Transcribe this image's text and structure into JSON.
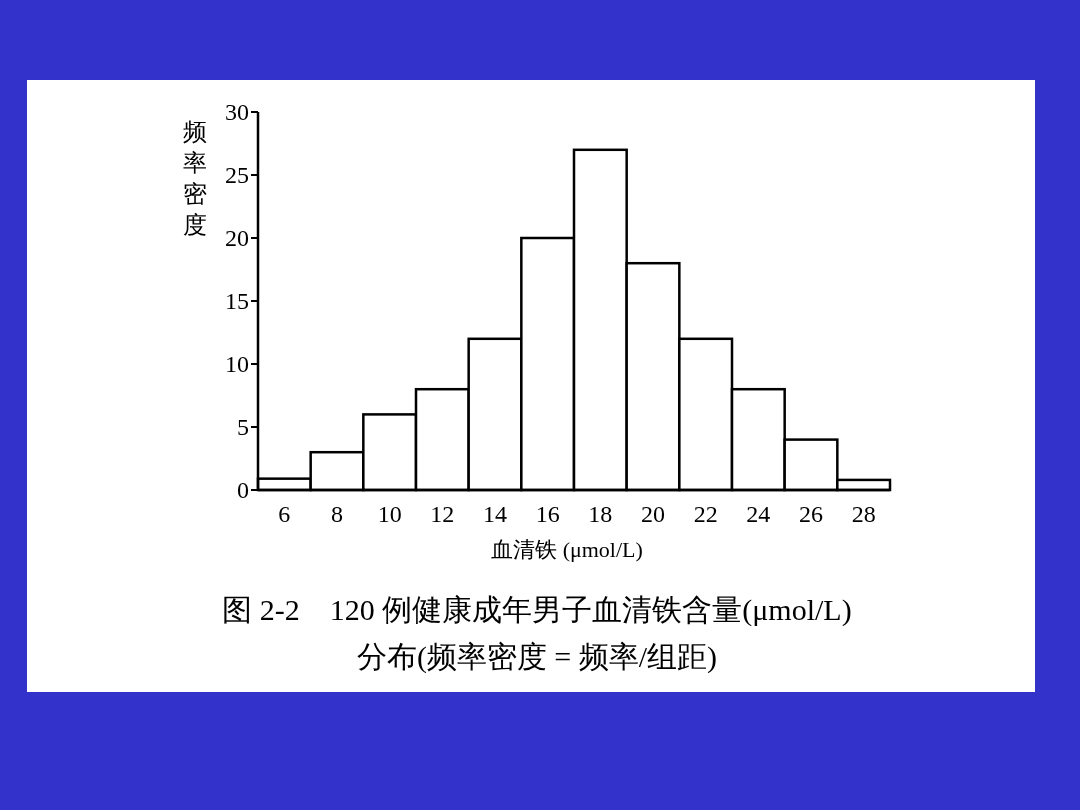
{
  "chart_data": {
    "type": "histogram",
    "title": "图 2-2　120 例健康成年男子血清铁含量(μmol/L)",
    "subtitle": "分布(频率密度 = 频率/组距)",
    "xlabel": "血清铁 (μmol/L)",
    "ylabel": "频率密度",
    "bins": [
      5,
      7,
      9,
      11,
      13,
      15,
      17,
      19,
      21,
      23,
      25,
      27,
      29
    ],
    "values": [
      0.9,
      3,
      6,
      8,
      12,
      20,
      27,
      18,
      12,
      8,
      4,
      0.8
    ],
    "color": "#ffffff",
    "xlim": [
      5,
      29
    ],
    "xticks": [
      6,
      8,
      10,
      12,
      14,
      16,
      18,
      20,
      22,
      24,
      26,
      28
    ],
    "ylim": [
      0,
      30
    ],
    "yticks": [
      0,
      5,
      10,
      15,
      20,
      25,
      30
    ],
    "grid": false
  }
}
